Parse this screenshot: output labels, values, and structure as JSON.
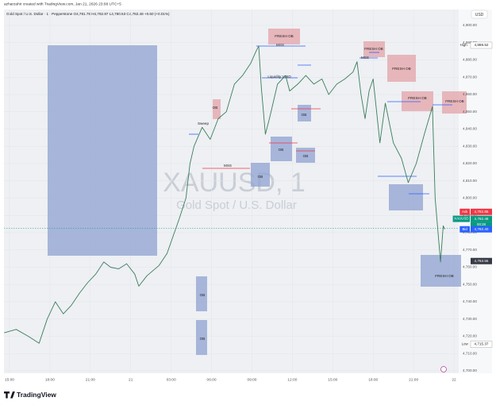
{
  "header": "azharzahir created with TradingView.com, Jan 21, 2026 23:08 UTC+5",
  "currency_button": "USD",
  "footer_logo": "TradingView",
  "chart_data": {
    "type": "line",
    "legend": "Gold Spot / U.S. Dollar · 1 · Pepperstone  O4,781.79 H4,782.87 L4,780.53 C4,782.48 +0.60 (+0.01%)",
    "watermark": "XAUUSD, 1",
    "watermark_subtitle": "Gold Spot / U.S. Dollar",
    "color": "#3a7d5a",
    "x": [
      -0.4,
      0.5,
      1.4,
      2.2,
      2.8,
      3.4,
      4.0,
      4.6,
      5.2,
      5.8,
      6.4,
      7.0,
      7.5,
      8.1,
      8.7,
      9.3,
      9.6,
      10.2,
      11.1,
      11.7,
      12.6,
      13.1,
      13.4,
      13.7,
      14.3,
      14.9,
      15.5,
      16.1,
      16.7,
      17.3,
      17.9,
      18.3,
      18.5,
      18.7,
      19.0,
      19.3,
      19.9,
      20.5,
      20.8,
      21.4,
      22.0,
      22.6,
      23.2,
      23.7,
      24.3,
      24.9,
      25.5,
      25.8,
      26.1,
      26.4,
      26.7,
      27.0,
      27.5,
      27.9,
      28.5,
      29.1,
      29.6,
      30.2,
      30.8,
      31.4,
      31.6,
      32.0,
      32.2,
      32.3
    ],
    "values": [
      4722,
      4724,
      4720,
      4716,
      4730,
      4740,
      4733,
      4738,
      4745,
      4751,
      4756,
      4763,
      4760,
      4759,
      4762,
      4756,
      4749,
      4755,
      4761,
      4768,
      4788,
      4800,
      4820,
      4830,
      4841,
      4834,
      4846,
      4850,
      4866,
      4871,
      4878,
      4885,
      4888,
      4864,
      4837,
      4846,
      4866,
      4871,
      4862,
      4866,
      4871,
      4866,
      4869,
      4860,
      4866,
      4869,
      4873,
      4879,
      4860,
      4846,
      4862,
      4869,
      4832,
      4855,
      4832,
      4823,
      4809,
      4820,
      4837,
      4853,
      4800,
      4763,
      4784,
      4782
    ],
    "xlim": [
      -0.41,
      33.35
    ],
    "xticks": [
      {
        "value": 0,
        "label": "15:00"
      },
      {
        "value": 3,
        "label": "18:00"
      },
      {
        "value": 6,
        "label": "21:00"
      },
      {
        "value": 9,
        "label": "21"
      },
      {
        "value": 12,
        "label": "03:00"
      },
      {
        "value": 15,
        "label": "06:00"
      },
      {
        "value": 18,
        "label": "09:00"
      },
      {
        "value": 21,
        "label": "12:00"
      },
      {
        "value": 24,
        "label": "15:00"
      },
      {
        "value": 27,
        "label": "18:00"
      },
      {
        "value": 30,
        "label": "21:00"
      },
      {
        "value": 33,
        "label": "22"
      }
    ],
    "ylim": [
      4698.6,
      4909.2
    ],
    "yticks": [
      {
        "value": 4700,
        "label": "4,700.00"
      },
      {
        "value": 4710,
        "label": "4,710.00"
      },
      {
        "value": 4720,
        "label": "4,720.00"
      },
      {
        "value": 4730,
        "label": "4,730.00"
      },
      {
        "value": 4740,
        "label": "4,740.00"
      },
      {
        "value": 4750,
        "label": "4,750.00"
      },
      {
        "value": 4760,
        "label": "4,760.00"
      },
      {
        "value": 4770,
        "label": "4,770.00"
      },
      {
        "value": 4780,
        "label": "4,780.00"
      },
      {
        "value": 4790,
        "label": "4,790.00"
      },
      {
        "value": 4800,
        "label": "4,800.00"
      },
      {
        "value": 4810,
        "label": "4,810.00"
      },
      {
        "value": 4820,
        "label": "4,820.00"
      },
      {
        "value": 4830,
        "label": "4,830.00"
      },
      {
        "value": 4840,
        "label": "4,840.00"
      },
      {
        "value": 4850,
        "label": "4,850.00"
      },
      {
        "value": 4860,
        "label": "4,860.00"
      },
      {
        "value": 4870,
        "label": "4,870.00"
      },
      {
        "value": 4880,
        "label": "4,880.00"
      },
      {
        "value": 4890,
        "label": "4,890.00"
      },
      {
        "value": 4900,
        "label": "4,900.00"
      }
    ],
    "grid": true,
    "price_labels": [
      {
        "tag": "High",
        "value": 4888.52,
        "label": "4,888.52",
        "color": "#ffffff"
      },
      {
        "tag": "Ask",
        "value": 4782.85,
        "label": "4,782.85",
        "color": "#f23645"
      },
      {
        "tag": "XAUUSD",
        "value": 4782.48,
        "label": "4,782.48",
        "color": "#089981",
        "countdown": "00:28"
      },
      {
        "tag": "Bid",
        "value": 4782.4,
        "label": "4,782.40",
        "color": "#2962ff"
      },
      {
        "value": 4763.55,
        "label": "4,763.55",
        "color": "#363a45"
      },
      {
        "tag": "Low",
        "value": 4715.37,
        "label": "4,715.37",
        "color": "#ffffff"
      }
    ],
    "annotations": [
      "FRESH OB",
      "MSS",
      "Liquidity VOID",
      "OB",
      "Sweep",
      "OB",
      "MSS",
      "OB",
      "OB",
      "OB",
      "OB",
      "OB",
      "FRESH OB",
      "MSS",
      "FRESH OB",
      "FRESH OB",
      "FRESH OB",
      "FRESH OB"
    ]
  }
}
